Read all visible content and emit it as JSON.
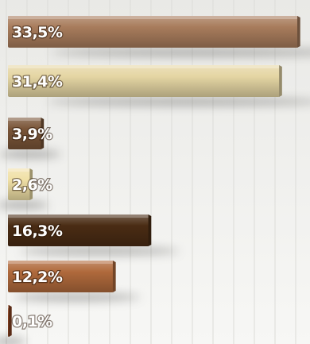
{
  "chart_data": {
    "type": "bar",
    "orientation": "horizontal",
    "categories": [
      "",
      "",
      "",
      "",
      "",
      "",
      ""
    ],
    "values": [
      33.5,
      31.4,
      3.9,
      2.6,
      16.3,
      12.2,
      0.1
    ],
    "labels": [
      "33,5%",
      "31,4%",
      "3,9%",
      "2,6%",
      "16,3%",
      "12,2%",
      "0,1%"
    ],
    "unit": "%",
    "xlim": [
      0,
      33.5
    ],
    "grid": true,
    "title": "",
    "xlabel": "",
    "ylabel": "",
    "colors": [
      "#a87c5c",
      "#e5d6a4",
      "#7a5538",
      "#f0e0a6",
      "#4a2c14",
      "#b06a3c",
      "#8a4322"
    ]
  }
}
